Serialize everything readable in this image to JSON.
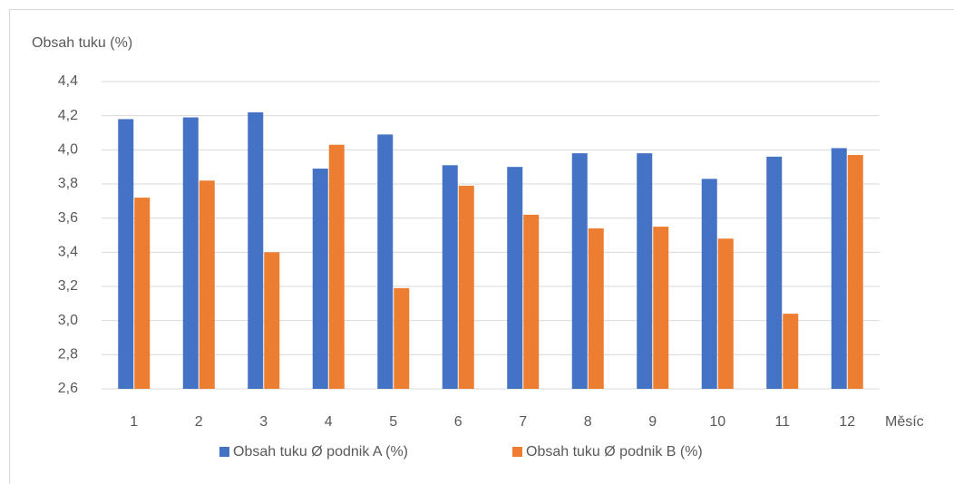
{
  "chart_data": {
    "type": "bar",
    "ylabel": "Obsah tuku (%)",
    "xlabel": "Měsíc",
    "categories": [
      "1",
      "2",
      "3",
      "4",
      "5",
      "6",
      "7",
      "8",
      "9",
      "10",
      "11",
      "12"
    ],
    "series": [
      {
        "name": "Obsah tuku Ø podnik A (%)",
        "color": "#4472c4",
        "values": [
          4.18,
          4.19,
          4.22,
          3.89,
          4.09,
          3.91,
          3.9,
          3.98,
          3.98,
          3.83,
          3.96,
          4.01
        ]
      },
      {
        "name": "Obsah tuku Ø podnik B (%)",
        "color": "#ed7d31",
        "values": [
          3.72,
          3.82,
          3.4,
          4.03,
          3.19,
          3.79,
          3.62,
          3.54,
          3.55,
          3.48,
          3.04,
          3.97
        ]
      }
    ],
    "ylim": [
      2.6,
      4.4
    ],
    "yticks": [
      {
        "value": 2.6,
        "label": "2,6"
      },
      {
        "value": 2.8,
        "label": "2,8"
      },
      {
        "value": 3.0,
        "label": "3,0"
      },
      {
        "value": 3.2,
        "label": "3,2"
      },
      {
        "value": 3.4,
        "label": "3,4"
      },
      {
        "value": 3.6,
        "label": "3,6"
      },
      {
        "value": 3.8,
        "label": "3,8"
      },
      {
        "value": 4.0,
        "label": "4,0"
      },
      {
        "value": 4.2,
        "label": "4,2"
      },
      {
        "value": 4.4,
        "label": "4,4"
      }
    ],
    "grid": true,
    "legend": "bottom"
  }
}
